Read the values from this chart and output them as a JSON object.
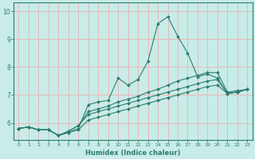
{
  "xlabel": "Humidex (Indice chaleur)",
  "bg_color": "#c8ece8",
  "grid_color": "#e8b8b8",
  "line_color": "#2e7d6e",
  "xlim": [
    -0.5,
    23.5
  ],
  "ylim": [
    5.4,
    10.3
  ],
  "yticks": [
    6,
    7,
    8,
    9,
    10
  ],
  "xticks": [
    0,
    1,
    2,
    3,
    4,
    5,
    6,
    7,
    8,
    9,
    10,
    11,
    12,
    13,
    14,
    15,
    16,
    17,
    18,
    19,
    20,
    21,
    22,
    23
  ],
  "series": [
    [
      5.8,
      5.85,
      5.75,
      5.75,
      5.55,
      5.65,
      5.8,
      6.65,
      6.75,
      6.8,
      7.6,
      7.35,
      7.55,
      8.2,
      9.55,
      9.8,
      9.1,
      8.5,
      7.65,
      7.75,
      7.6,
      7.05,
      7.1,
      7.2
    ],
    [
      5.8,
      5.85,
      5.75,
      5.75,
      5.55,
      5.7,
      5.9,
      6.4,
      6.5,
      6.6,
      6.75,
      6.85,
      6.95,
      7.1,
      7.2,
      7.35,
      7.5,
      7.6,
      7.7,
      7.8,
      7.8,
      7.1,
      7.15,
      7.2
    ],
    [
      5.8,
      5.85,
      5.75,
      5.75,
      5.55,
      5.7,
      5.9,
      6.3,
      6.4,
      6.5,
      6.6,
      6.7,
      6.8,
      6.9,
      7.0,
      7.1,
      7.2,
      7.3,
      7.4,
      7.5,
      7.55,
      7.05,
      7.1,
      7.2
    ],
    [
      5.8,
      5.85,
      5.75,
      5.75,
      5.55,
      5.65,
      5.75,
      6.1,
      6.2,
      6.3,
      6.4,
      6.5,
      6.6,
      6.7,
      6.8,
      6.9,
      7.0,
      7.1,
      7.2,
      7.3,
      7.35,
      7.05,
      7.1,
      7.2
    ]
  ]
}
